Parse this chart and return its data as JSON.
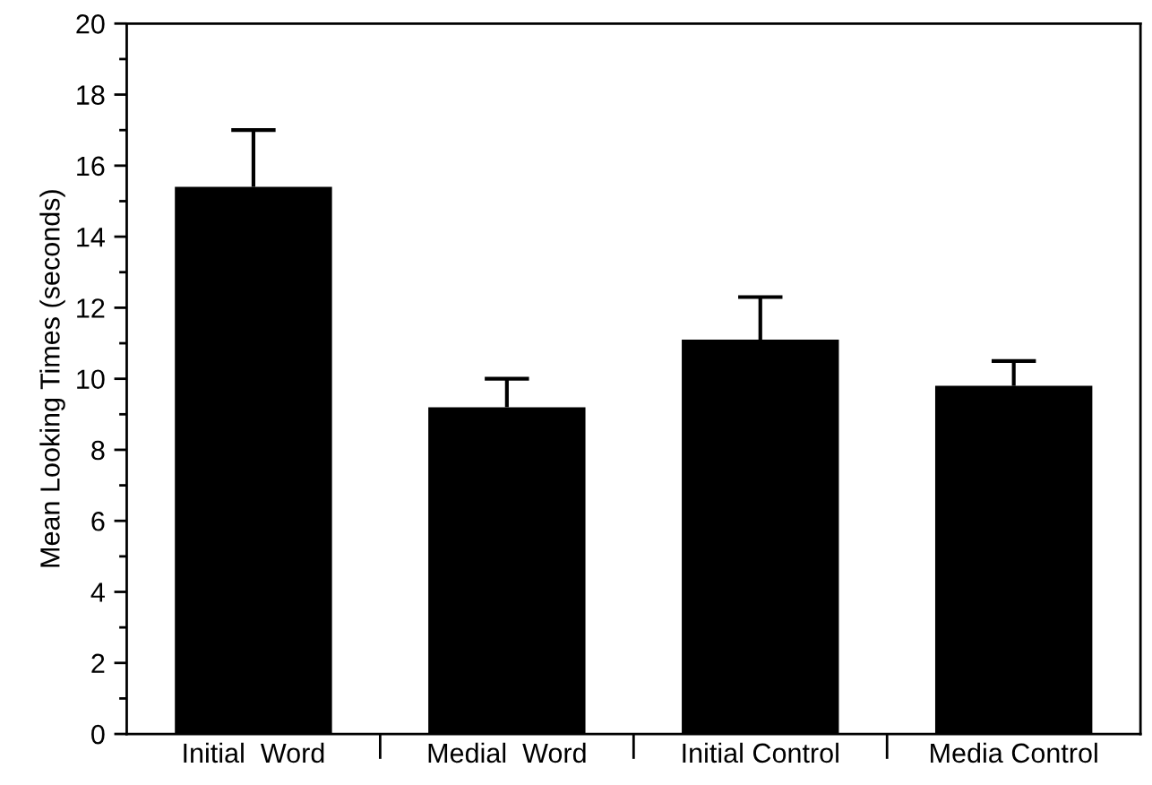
{
  "chart_data": {
    "type": "bar",
    "ylabel": "Mean Looking Times (seconds)",
    "categories": [
      "Initial  Word",
      "Medial  Word",
      "Initial Control",
      "Media Control"
    ],
    "values": [
      15.4,
      9.2,
      11.1,
      9.8
    ],
    "errors": [
      [
        15.4,
        17.0
      ],
      [
        9.2,
        10.0
      ],
      [
        11.1,
        12.3
      ],
      [
        9.8,
        10.5
      ]
    ],
    "color": "#000000",
    "ylim": [
      0,
      20
    ],
    "yticks": [
      0,
      {
        "value": 1,
        "label": null
      },
      2,
      {
        "value": 3,
        "label": null
      },
      4,
      {
        "value": 5,
        "label": null
      },
      6,
      {
        "value": 7,
        "label": null
      },
      8,
      {
        "value": 9,
        "label": null
      },
      10,
      {
        "value": 11,
        "label": null
      },
      12,
      {
        "value": 13,
        "label": null
      },
      14,
      {
        "value": 15,
        "label": null
      },
      16,
      {
        "value": 17,
        "label": null
      },
      18,
      {
        "value": 19,
        "label": null
      },
      20
    ],
    "grid": false
  }
}
